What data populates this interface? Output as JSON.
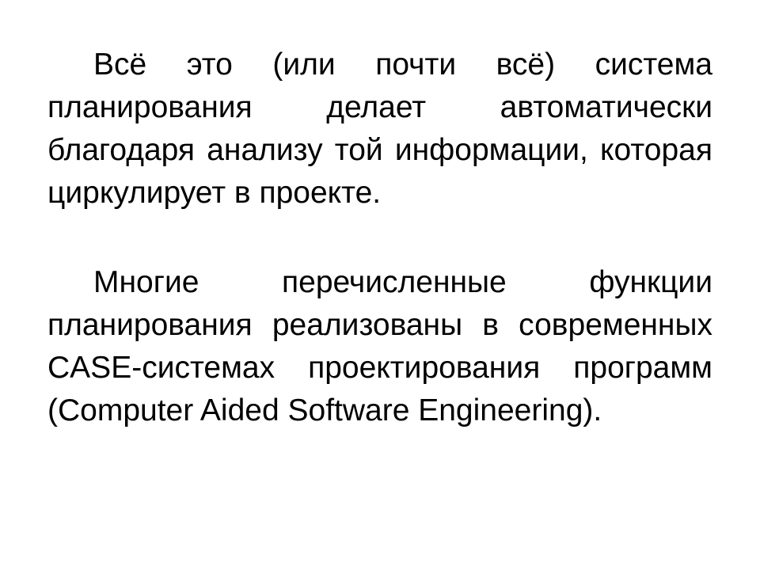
{
  "slide": {
    "paragraphs": [
      "Всё это (или почти всё) система планирования делает автоматически благодаря анализу той информации, которая циркулирует в проекте.",
      "Многие перечисленные функции планирования реализованы в современных CASE-системах проектирования программ (Computer Aided Software Engineering)."
    ]
  }
}
